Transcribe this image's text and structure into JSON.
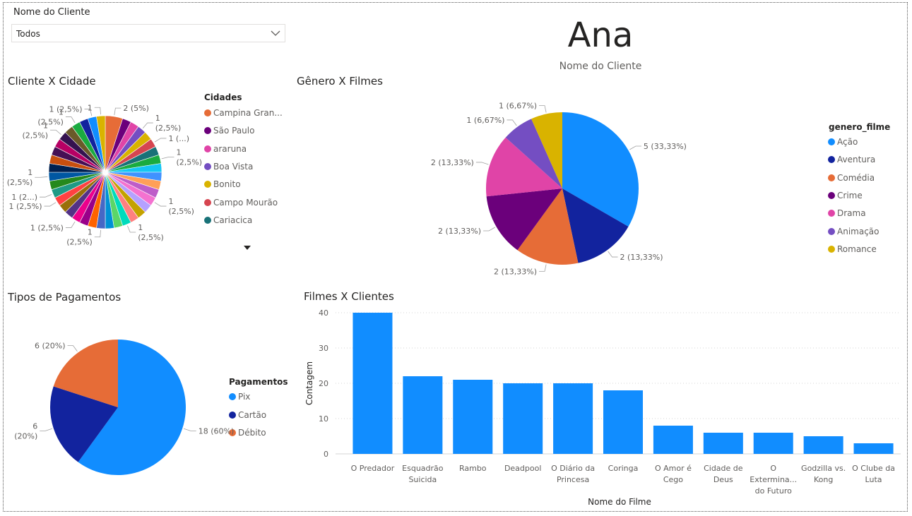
{
  "slicer": {
    "title": "Nome do Cliente",
    "value": "Todos",
    "icon": "chevron-down-icon"
  },
  "card": {
    "value": "Ana",
    "label": "Nome do Cliente"
  },
  "visuals": {
    "cidade_title": "Cliente X Cidade",
    "genero_title": "Gênero X Filmes",
    "pagamentos_title": "Tipos de Pagamentos",
    "filmes_title": "Filmes X Clientes"
  },
  "legends": {
    "cidades": {
      "title": "Cidades",
      "items": [
        {
          "label": "Campina Gran...",
          "color": "#E66C37"
        },
        {
          "label": "São Paulo",
          "color": "#6B007B"
        },
        {
          "label": "araruna",
          "color": "#E044A7"
        },
        {
          "label": "Boa Vista",
          "color": "#744EC2"
        },
        {
          "label": "Bonito",
          "color": "#D9B300"
        },
        {
          "label": "Campo Mourão",
          "color": "#D64550"
        },
        {
          "label": "Cariacica",
          "color": "#197278"
        }
      ]
    },
    "genero": {
      "title": "genero_filme",
      "items": [
        {
          "label": "Ação",
          "color": "#118DFF"
        },
        {
          "label": "Aventura",
          "color": "#12239E"
        },
        {
          "label": "Comédia",
          "color": "#E66C37"
        },
        {
          "label": "Crime",
          "color": "#6B007B"
        },
        {
          "label": "Drama",
          "color": "#E044A7"
        },
        {
          "label": "Animação",
          "color": "#744EC2"
        },
        {
          "label": "Romance",
          "color": "#D9B300"
        }
      ]
    },
    "pagamentos": {
      "title": "Pagamentos",
      "items": [
        {
          "label": "Pix",
          "color": "#118DFF"
        },
        {
          "label": "Cartão",
          "color": "#12239E"
        },
        {
          "label": "Débito",
          "color": "#E66C37"
        }
      ]
    }
  },
  "chart_data": [
    {
      "type": "pie",
      "title": "Cliente X Cidade",
      "total_slices": 40,
      "slices": [
        {
          "category": "Campina Gran...",
          "value": 2,
          "label": "2 (5%)"
        }
      ],
      "other_slice_value": 1,
      "visible_labels": [
        "2 (5%)",
        "1",
        "(2,5%)",
        "1 (...)",
        "1",
        "(2,5%)",
        "1",
        "(2,5%)",
        "1",
        "(2,5%)",
        "1",
        "(2,5%)",
        "1 (2,5%)",
        "1 (2,5%)",
        "1 (2...)",
        "1",
        "(2,5%)",
        "1",
        "(2,5%)",
        "1",
        "(2,5%)",
        "1 (2,5%)",
        "1"
      ],
      "colors": [
        "#E66C37",
        "#6B007B",
        "#E044A7",
        "#744EC2",
        "#D9B300",
        "#D64550",
        "#197278",
        "#1AAB40",
        "#15C6F4",
        "#4092FF",
        "#FFA058",
        "#BE5DC9",
        "#F472D0",
        "#B5A1FF",
        "#C4A200",
        "#FF8080",
        "#00DBBC",
        "#5BD667",
        "#0091D5",
        "#4668C5",
        "#FF6300",
        "#99008A",
        "#EC008C",
        "#533285",
        "#99700A",
        "#FF4141",
        "#1F9A85",
        "#25891C",
        "#0057A2",
        "#002050",
        "#C94F0F",
        "#450F54",
        "#B60064",
        "#34124F",
        "#6A5A29",
        "#1AAB40",
        "#12239E",
        "#118DFF",
        "#D9B300",
        "#6B007B"
      ]
    },
    {
      "type": "pie",
      "title": "Gênero X Filmes",
      "categories": [
        "Ação",
        "Aventura",
        "Comédia",
        "Crime",
        "Drama",
        "Animação",
        "Romance"
      ],
      "values": [
        5,
        2,
        2,
        2,
        2,
        1,
        1
      ],
      "labels": [
        "5 (33,33%)",
        "2 (13,33%)",
        "2 (13,33%)",
        "2 (13,33%)",
        "2 (13,33%)",
        "1 (6,67%)",
        "1 (6,67%)"
      ]
    },
    {
      "type": "pie",
      "title": "Tipos de Pagamentos",
      "categories": [
        "Pix",
        "Cartão",
        "Débito"
      ],
      "values": [
        18,
        6,
        6
      ],
      "labels": [
        "18 (60%)",
        "6 (20%)",
        "6 (20%)"
      ]
    },
    {
      "type": "bar",
      "title": "Filmes X Clientes",
      "xlabel": "Nome do Filme",
      "ylabel": "Contagem",
      "ylim": [
        0,
        40
      ],
      "yticks": [
        "0",
        "10",
        "20",
        "30",
        "40"
      ],
      "color": "#118DFF",
      "categories": [
        [
          "O Predador"
        ],
        [
          "Esquadrão",
          "Suicida"
        ],
        [
          "Rambo"
        ],
        [
          "Deadpool"
        ],
        [
          "O Diário da",
          "Princesa"
        ],
        [
          "Coringa"
        ],
        [
          "O Amor é",
          "Cego"
        ],
        [
          "Cidade de",
          "Deus"
        ],
        [
          "O",
          "Extermina...",
          "do Futuro"
        ],
        [
          "Godzilla vs.",
          "Kong"
        ],
        [
          "O Clube da",
          "Luta"
        ]
      ],
      "values": [
        40,
        22,
        21,
        20,
        20,
        18,
        8,
        6,
        6,
        5,
        3
      ]
    }
  ]
}
